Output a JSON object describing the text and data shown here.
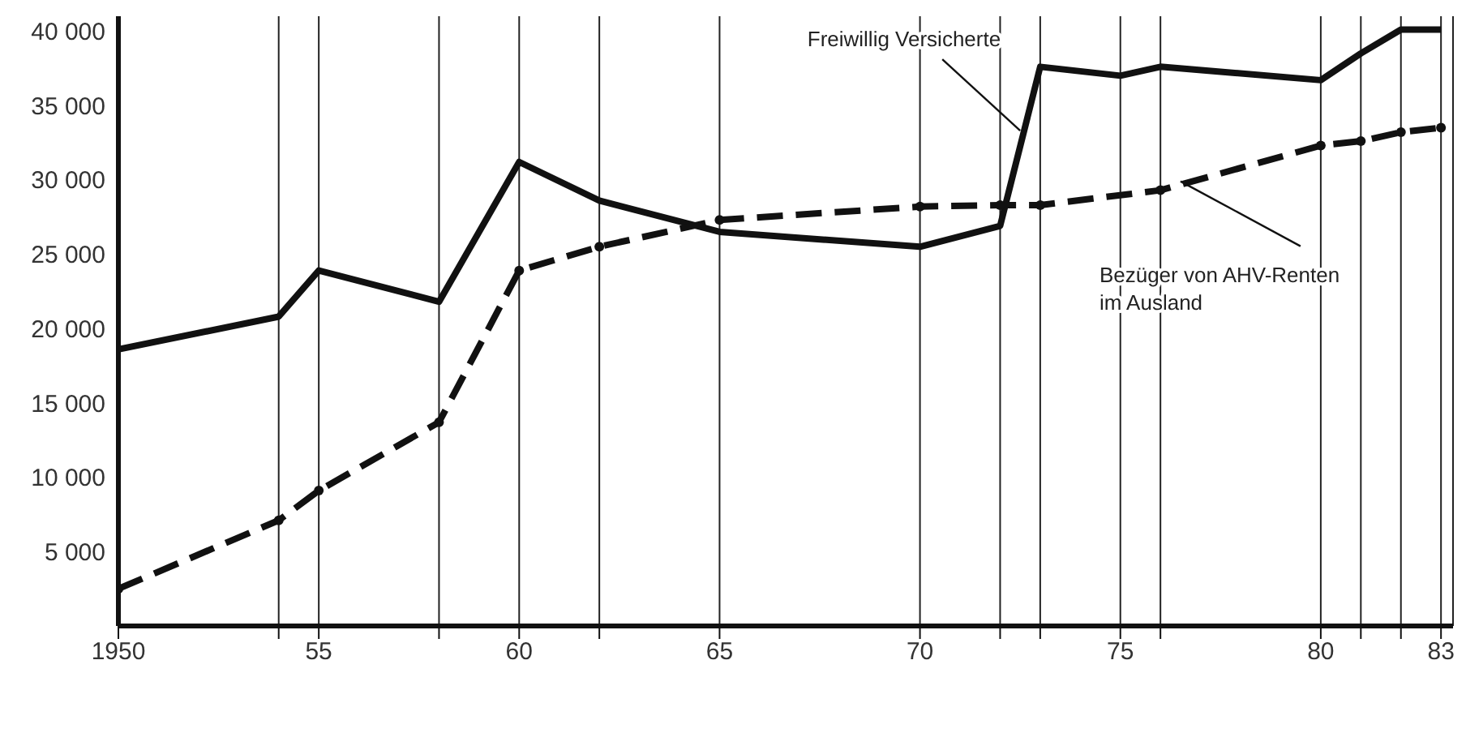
{
  "chart_data": {
    "type": "line",
    "x": [
      1950,
      1954,
      1955,
      1958,
      1960,
      1962,
      1965,
      1970,
      1972,
      1973,
      1975,
      1976,
      1980,
      1981,
      1982,
      1983
    ],
    "series": [
      {
        "color": "#111111",
        "line_style": "solid",
        "marker": "none",
        "values": [
          18600,
          20800,
          23900,
          21800,
          31200,
          28600,
          26500,
          25500,
          26900,
          37600,
          37000,
          37600,
          36700,
          38500,
          40100,
          40100
        ]
      },
      {
        "color": "#111111",
        "line_style": "dashed",
        "marker": "circle",
        "values": [
          2500,
          7100,
          9100,
          13700,
          23900,
          25500,
          27300,
          28200,
          28300,
          28300,
          null,
          29300,
          32300,
          32600,
          33200,
          33500
        ]
      }
    ],
    "xlim": [
      1950,
      1983.3
    ],
    "xticks": [
      {
        "value": 1950,
        "label": "1950"
      },
      {
        "value": 1954,
        "label": null
      },
      {
        "value": 1955,
        "label": "55"
      },
      {
        "value": 1958,
        "label": null
      },
      {
        "value": 1960,
        "label": "60"
      },
      {
        "value": 1962,
        "label": null
      },
      {
        "value": 1965,
        "label": "65"
      },
      {
        "value": 1970,
        "label": "70"
      },
      {
        "value": 1972,
        "label": null
      },
      {
        "value": 1973,
        "label": null
      },
      {
        "value": 1975,
        "label": "75"
      },
      {
        "value": 1976,
        "label": null
      },
      {
        "value": 1980,
        "label": "80"
      },
      {
        "value": 1981,
        "label": null
      },
      {
        "value": 1982,
        "label": null
      },
      {
        "value": 1983,
        "label": "83"
      }
    ],
    "ylim": [
      0,
      41000
    ],
    "yticks": [
      {
        "value": 5000,
        "label": "5 000"
      },
      {
        "value": 10000,
        "label": "10 000"
      },
      {
        "value": 15000,
        "label": "15 000"
      },
      {
        "value": 20000,
        "label": "20 000"
      },
      {
        "value": 25000,
        "label": "25 000"
      },
      {
        "value": 30000,
        "label": "30 000"
      },
      {
        "value": 35000,
        "label": "35 000"
      },
      {
        "value": 40000,
        "label": "40 000"
      }
    ],
    "grid": "x",
    "legend": false,
    "annotations": [
      {
        "text": "Freiwillig Versicherte",
        "x": 1972.5,
        "y": 33300
      },
      {
        "text": "Bezüger von AHV-Renten\nim Ausland",
        "x": 1976.5,
        "y": 29900
      }
    ]
  }
}
